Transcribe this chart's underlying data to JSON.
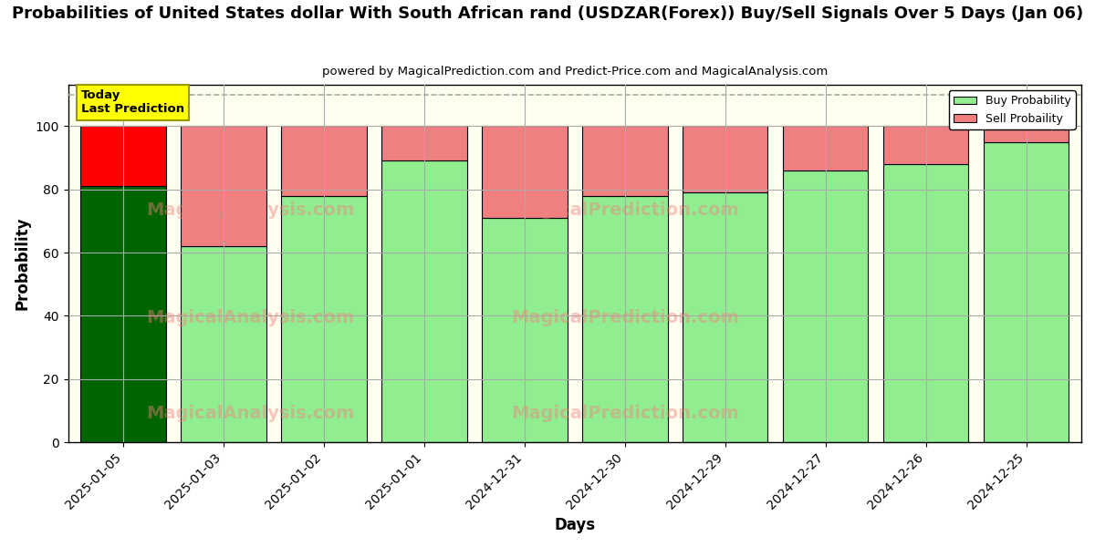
{
  "title": "Probabilities of United States dollar With South African rand (USDZAR(Forex)) Buy/Sell Signals Over 5 Days (Jan 06)",
  "subtitle": "powered by MagicalPrediction.com and Predict-Price.com and MagicalAnalysis.com",
  "xlabel": "Days",
  "ylabel": "Probability",
  "categories": [
    "2025-01-05",
    "2025-01-03",
    "2025-01-02",
    "2025-01-01",
    "2024-12-31",
    "2024-12-30",
    "2024-12-29",
    "2024-12-27",
    "2024-12-26",
    "2024-12-25"
  ],
  "buy_values": [
    81,
    62,
    78,
    89,
    71,
    78,
    79,
    86,
    88,
    95
  ],
  "sell_values": [
    19,
    38,
    22,
    11,
    29,
    22,
    21,
    14,
    12,
    5
  ],
  "first_bar_buy_color": "#006400",
  "first_bar_sell_color": "#FF0000",
  "buy_color": "#90EE90",
  "sell_color": "#F08080",
  "bar_edgecolor": "#000000",
  "grid_color": "#aaaaaa",
  "background_color": "#FFFFF0",
  "ylim": [
    0,
    113
  ],
  "yticks": [
    0,
    20,
    40,
    60,
    80,
    100
  ],
  "dashed_line_y": 110,
  "annotation_box_color": "#FFFF00",
  "annotation_text1": "Today",
  "annotation_text2": "Last Prediction",
  "legend_buy_label": "Buy Probability",
  "legend_sell_label": "Sell Probaility",
  "watermark1": "MagicalAnalysis.com",
  "watermark2": "MagicalPrediction.com",
  "figsize": [
    12.0,
    6.0
  ],
  "dpi": 100
}
